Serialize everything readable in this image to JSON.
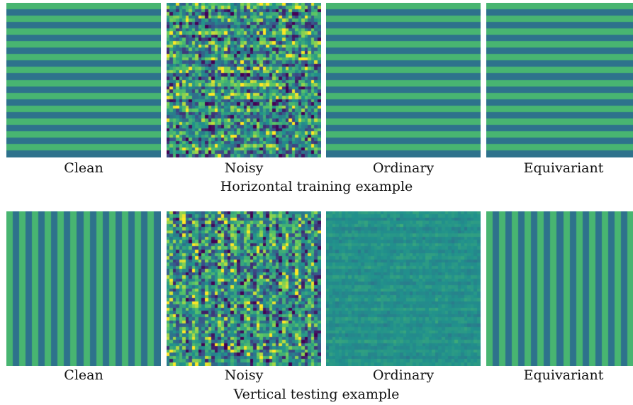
{
  "colors": {
    "viridis_dark": "#440154",
    "viridis_blue": "#3b528b",
    "viridis_teal": "#21918c",
    "viridis_green": "#5ec962",
    "viridis_yellow": "#fde725"
  },
  "rows": [
    {
      "caption": "Horizontal training example",
      "orientation": "horizontal",
      "panels": [
        {
          "label": "Clean",
          "kind": "clean"
        },
        {
          "label": "Noisy",
          "kind": "noisy"
        },
        {
          "label": "Ordinary",
          "kind": "clean"
        },
        {
          "label": "Equivariant",
          "kind": "clean"
        }
      ]
    },
    {
      "caption": "Vertical testing example",
      "orientation": "vertical",
      "panels": [
        {
          "label": "Clean",
          "kind": "clean"
        },
        {
          "label": "Noisy",
          "kind": "noisy"
        },
        {
          "label": "Ordinary",
          "kind": "washed"
        },
        {
          "label": "Equivariant",
          "kind": "clean"
        }
      ]
    }
  ]
}
